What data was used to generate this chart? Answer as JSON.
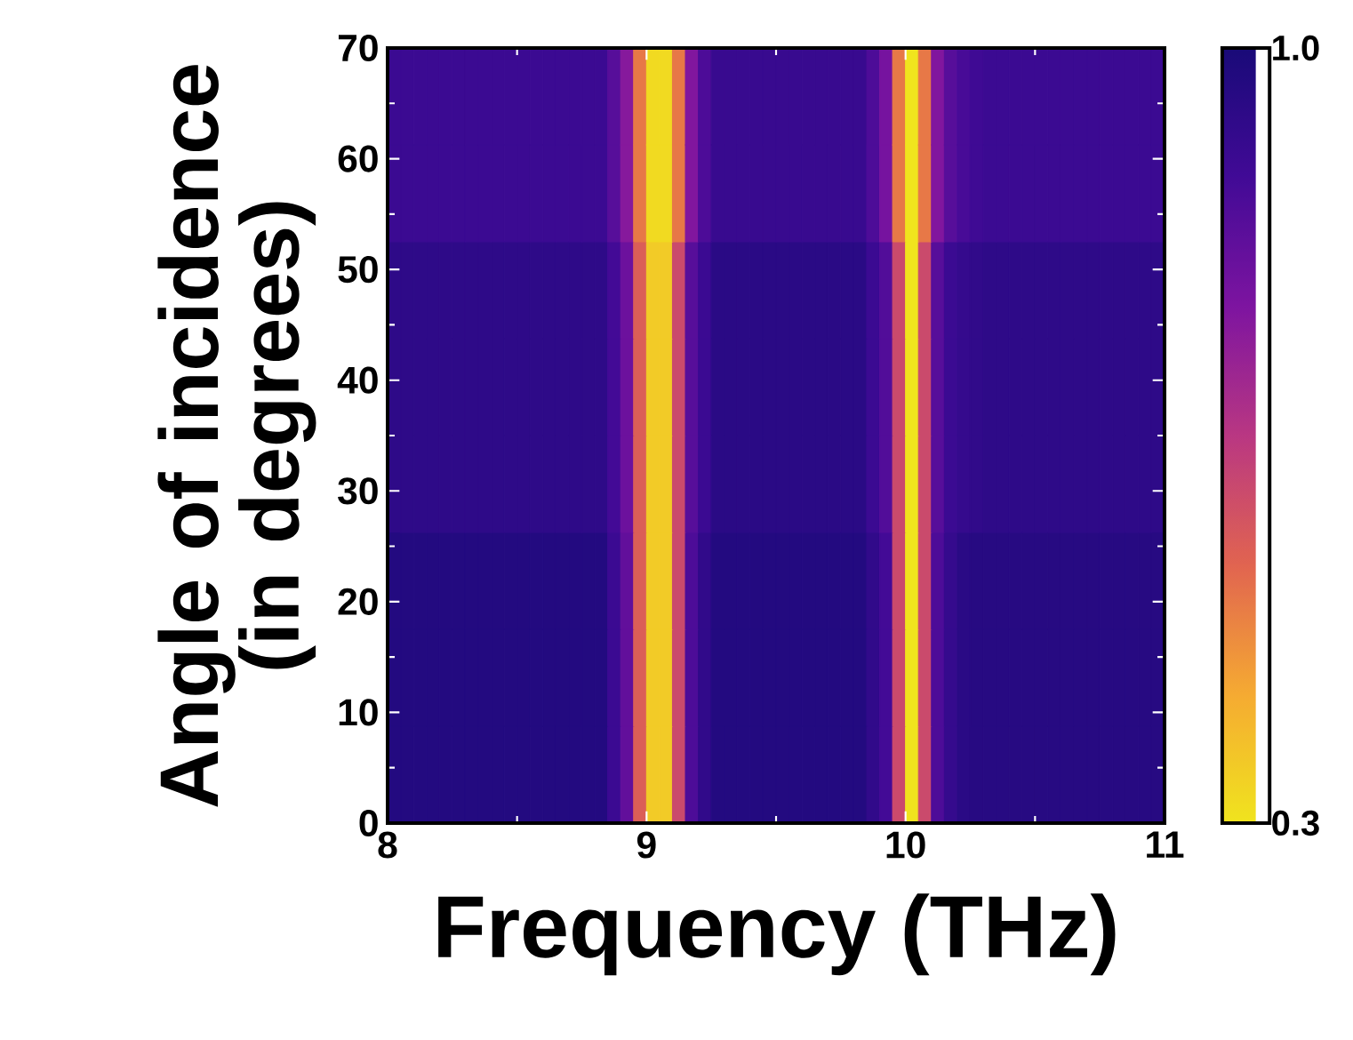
{
  "chart_data": {
    "type": "heatmap",
    "xlabel": "Frequency (THz)",
    "ylabel": "Angle of incidence (in degrees)",
    "x": [
      8.025,
      8.075,
      8.125,
      8.175,
      8.225,
      8.275,
      8.325,
      8.375,
      8.425,
      8.475,
      8.525,
      8.575,
      8.625,
      8.675,
      8.725,
      8.775,
      8.825,
      8.875,
      8.925,
      8.975,
      9.025,
      9.075,
      9.125,
      9.175,
      9.225,
      9.275,
      9.325,
      9.375,
      9.425,
      9.475,
      9.525,
      9.575,
      9.625,
      9.675,
      9.725,
      9.775,
      9.825,
      9.875,
      9.925,
      9.975,
      10.025,
      10.075,
      10.125,
      10.175,
      10.225,
      10.275,
      10.325,
      10.375,
      10.425,
      10.475,
      10.525,
      10.575,
      10.625,
      10.675,
      10.725,
      10.775,
      10.825,
      10.875,
      10.925,
      10.975
    ],
    "cells": [
      [
        0.9,
        0.9,
        0.9,
        0.9,
        0.9,
        0.9,
        0.9,
        0.9,
        0.9,
        0.9,
        0.9,
        0.9,
        0.9,
        0.9,
        0.9,
        0.9,
        0.9,
        0.84,
        0.75,
        0.5,
        0.32,
        0.32,
        0.5,
        0.76,
        0.86,
        0.91,
        0.91,
        0.91,
        0.91,
        0.91,
        0.91,
        0.91,
        0.91,
        0.91,
        0.91,
        0.91,
        0.91,
        0.86,
        0.78,
        0.5,
        0.3,
        0.5,
        0.76,
        0.84,
        0.87,
        0.89,
        0.9,
        0.9,
        0.9,
        0.9,
        0.9,
        0.9,
        0.9,
        0.9,
        0.9,
        0.9,
        0.9,
        0.9,
        0.9,
        0.9
      ],
      [
        0.9,
        0.9,
        0.9,
        0.9,
        0.9,
        0.9,
        0.9,
        0.9,
        0.9,
        0.9,
        0.9,
        0.9,
        0.9,
        0.9,
        0.9,
        0.9,
        0.9,
        0.84,
        0.75,
        0.5,
        0.32,
        0.32,
        0.5,
        0.76,
        0.86,
        0.91,
        0.91,
        0.91,
        0.91,
        0.91,
        0.91,
        0.91,
        0.91,
        0.91,
        0.91,
        0.91,
        0.91,
        0.86,
        0.78,
        0.5,
        0.3,
        0.5,
        0.76,
        0.84,
        0.87,
        0.89,
        0.9,
        0.9,
        0.9,
        0.9,
        0.9,
        0.9,
        0.9,
        0.9,
        0.9,
        0.9,
        0.9,
        0.9,
        0.9,
        0.9
      ],
      [
        0.94,
        0.94,
        0.94,
        0.94,
        0.94,
        0.94,
        0.94,
        0.94,
        0.94,
        0.94,
        0.94,
        0.94,
        0.94,
        0.94,
        0.94,
        0.94,
        0.94,
        0.88,
        0.8,
        0.55,
        0.35,
        0.35,
        0.6,
        0.84,
        0.9,
        0.95,
        0.95,
        0.95,
        0.95,
        0.95,
        0.95,
        0.95,
        0.95,
        0.95,
        0.95,
        0.95,
        0.95,
        0.9,
        0.85,
        0.6,
        0.3,
        0.6,
        0.84,
        0.9,
        0.92,
        0.93,
        0.94,
        0.94,
        0.94,
        0.94,
        0.94,
        0.94,
        0.94,
        0.94,
        0.94,
        0.94,
        0.94,
        0.94,
        0.94,
        0.94
      ],
      [
        0.94,
        0.94,
        0.94,
        0.94,
        0.94,
        0.94,
        0.94,
        0.94,
        0.94,
        0.94,
        0.94,
        0.94,
        0.94,
        0.94,
        0.94,
        0.94,
        0.94,
        0.88,
        0.8,
        0.55,
        0.35,
        0.35,
        0.6,
        0.84,
        0.9,
        0.95,
        0.95,
        0.95,
        0.95,
        0.95,
        0.95,
        0.95,
        0.95,
        0.95,
        0.95,
        0.95,
        0.95,
        0.9,
        0.85,
        0.6,
        0.3,
        0.6,
        0.84,
        0.9,
        0.92,
        0.93,
        0.94,
        0.94,
        0.94,
        0.94,
        0.94,
        0.94,
        0.94,
        0.94,
        0.94,
        0.94,
        0.94,
        0.94,
        0.94,
        0.94
      ],
      [
        0.94,
        0.94,
        0.94,
        0.94,
        0.94,
        0.94,
        0.94,
        0.94,
        0.94,
        0.94,
        0.94,
        0.94,
        0.94,
        0.94,
        0.94,
        0.94,
        0.94,
        0.88,
        0.8,
        0.55,
        0.35,
        0.35,
        0.6,
        0.84,
        0.9,
        0.95,
        0.95,
        0.95,
        0.95,
        0.95,
        0.95,
        0.95,
        0.95,
        0.95,
        0.95,
        0.95,
        0.95,
        0.9,
        0.85,
        0.6,
        0.3,
        0.6,
        0.84,
        0.9,
        0.92,
        0.93,
        0.94,
        0.94,
        0.94,
        0.94,
        0.94,
        0.94,
        0.94,
        0.94,
        0.94,
        0.94,
        0.94,
        0.94,
        0.94,
        0.94
      ],
      [
        0.97,
        0.97,
        0.97,
        0.97,
        0.97,
        0.97,
        0.97,
        0.97,
        0.97,
        0.97,
        0.97,
        0.97,
        0.97,
        0.97,
        0.97,
        0.97,
        0.97,
        0.9,
        0.82,
        0.55,
        0.35,
        0.35,
        0.6,
        0.86,
        0.93,
        0.97,
        0.97,
        0.97,
        0.97,
        0.97,
        0.97,
        0.97,
        0.97,
        0.97,
        0.97,
        0.97,
        0.97,
        0.93,
        0.88,
        0.6,
        0.3,
        0.6,
        0.86,
        0.92,
        0.95,
        0.96,
        0.96,
        0.96,
        0.96,
        0.96,
        0.96,
        0.96,
        0.96,
        0.96,
        0.96,
        0.96,
        0.96,
        0.96,
        0.96,
        0.96
      ],
      [
        0.97,
        0.97,
        0.97,
        0.97,
        0.97,
        0.97,
        0.97,
        0.97,
        0.97,
        0.97,
        0.97,
        0.97,
        0.97,
        0.97,
        0.97,
        0.97,
        0.97,
        0.9,
        0.82,
        0.55,
        0.35,
        0.35,
        0.6,
        0.86,
        0.93,
        0.97,
        0.97,
        0.97,
        0.97,
        0.97,
        0.97,
        0.97,
        0.97,
        0.97,
        0.97,
        0.97,
        0.97,
        0.93,
        0.88,
        0.6,
        0.3,
        0.6,
        0.86,
        0.92,
        0.95,
        0.96,
        0.96,
        0.96,
        0.96,
        0.96,
        0.96,
        0.96,
        0.96,
        0.96,
        0.96,
        0.96,
        0.96,
        0.96,
        0.96,
        0.96
      ],
      [
        0.97,
        0.97,
        0.97,
        0.97,
        0.97,
        0.97,
        0.97,
        0.97,
        0.97,
        0.97,
        0.97,
        0.97,
        0.97,
        0.97,
        0.97,
        0.97,
        0.97,
        0.9,
        0.82,
        0.55,
        0.35,
        0.35,
        0.6,
        0.86,
        0.93,
        0.97,
        0.97,
        0.97,
        0.97,
        0.97,
        0.97,
        0.97,
        0.97,
        0.97,
        0.97,
        0.97,
        0.97,
        0.93,
        0.88,
        0.6,
        0.3,
        0.6,
        0.86,
        0.92,
        0.95,
        0.96,
        0.96,
        0.96,
        0.96,
        0.96,
        0.96,
        0.96,
        0.96,
        0.96,
        0.96,
        0.96,
        0.96,
        0.96,
        0.96,
        0.96
      ]
    ],
    "xlim": [
      8,
      11
    ],
    "ylim": [
      0,
      70
    ],
    "xticks": [
      8,
      9,
      10,
      11
    ],
    "yticks": [
      0,
      10,
      20,
      30,
      40,
      50,
      60,
      70
    ],
    "clim": [
      0.3,
      1.0
    ],
    "cticks": [
      {
        "value": 1.0,
        "label": "1.0"
      },
      {
        "value": 0.3,
        "label": "0.3"
      }
    ]
  }
}
